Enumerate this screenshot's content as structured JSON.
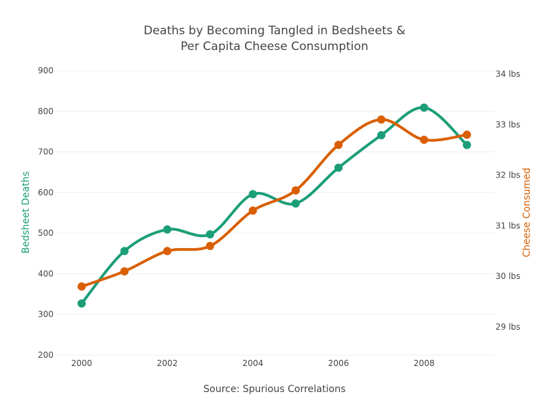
{
  "chart_data": {
    "type": "line",
    "title_lines": [
      "Deaths by Becoming Tangled in Bedsheets &",
      "Per Capita Cheese Consumption"
    ],
    "xlabel": "Source: Spurious Correlations",
    "ylabel": "Bedsheet Deaths",
    "y2label": "Cheese Consumed",
    "x": [
      2000,
      2001,
      2002,
      2003,
      2004,
      2005,
      2006,
      2007,
      2008,
      2009
    ],
    "xlim": [
      1999.4,
      2009.65
    ],
    "x_ticks": [
      2000,
      2002,
      2004,
      2006,
      2008
    ],
    "x_tick_labels": [
      "2000",
      "2002",
      "2004",
      "2006",
      "2008"
    ],
    "ylim": [
      200,
      900
    ],
    "y_ticks": [
      200,
      300,
      400,
      500,
      600,
      700,
      800,
      900
    ],
    "y_tick_labels": [
      "200",
      "300",
      "400",
      "500",
      "600",
      "700",
      "800",
      "900"
    ],
    "y2lim": [
      28.5,
      34
    ],
    "y2_ticks": [
      29,
      30,
      31,
      32,
      33,
      34
    ],
    "y2_tick_labels": [
      "29 lbs",
      "30 lbs",
      "31 lbs",
      "32 lbs",
      "33 lbs",
      "34 lbs"
    ],
    "grid": true,
    "series": [
      {
        "name": "Bedsheet Deaths",
        "axis": "left",
        "color": "#1b9e77",
        "values": [
          327,
          456,
          509,
          497,
          596,
          573,
          661,
          741,
          809,
          717
        ]
      },
      {
        "name": "Cheese Consumed",
        "axis": "right",
        "color": "#d95f02",
        "values": [
          29.8,
          30.1,
          30.5,
          30.6,
          31.3,
          31.7,
          32.6,
          33.1,
          32.7,
          32.8
        ]
      }
    ]
  }
}
